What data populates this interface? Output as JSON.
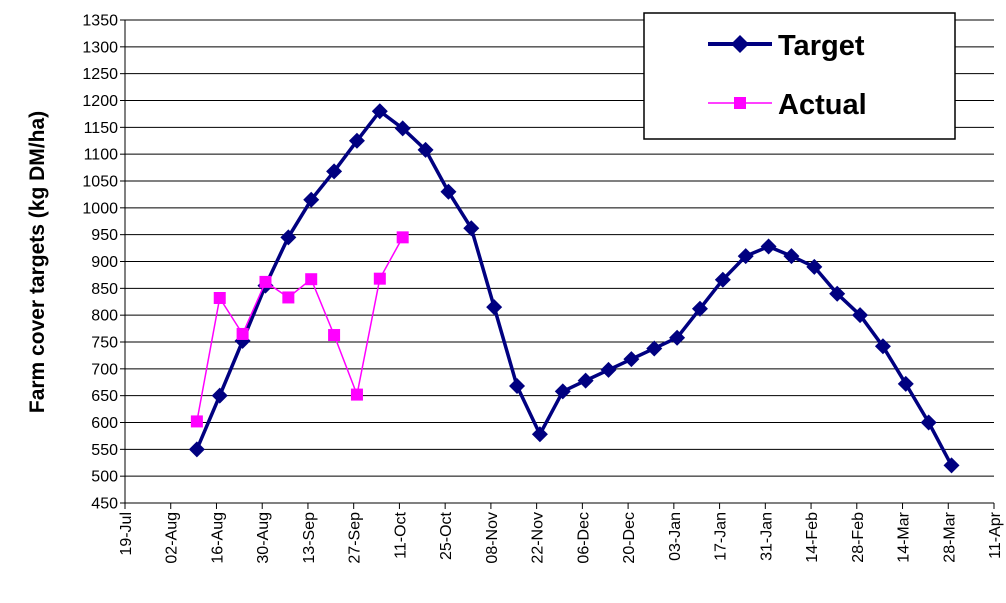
{
  "chart_data": {
    "type": "line",
    "title": "",
    "xlabel": "",
    "ylabel": "Farm cover targets (kg DM/ha)",
    "xlim": [
      "19-Jul",
      "11-Apr"
    ],
    "ylim": [
      450,
      1350
    ],
    "y_ticks": [
      450,
      500,
      550,
      600,
      650,
      700,
      750,
      800,
      850,
      900,
      950,
      1000,
      1050,
      1100,
      1150,
      1200,
      1250,
      1300,
      1350
    ],
    "x_tick_labels": [
      "19-Jul",
      "02-Aug",
      "16-Aug",
      "30-Aug",
      "13-Sep",
      "27-Sep",
      "11-Oct",
      "25-Oct",
      "08-Nov",
      "22-Nov",
      "06-Dec",
      "20-Dec",
      "03-Jan",
      "17-Jan",
      "31-Jan",
      "14-Feb",
      "28-Feb",
      "14-Mar",
      "28-Mar",
      "11-Apr"
    ],
    "grid": "horizontal",
    "legend_position": "top-right",
    "series": [
      {
        "name": "Target",
        "color": "#000080",
        "marker": "diamond",
        "points": [
          {
            "x": "10-Aug",
            "y": 550
          },
          {
            "x": "17-Aug",
            "y": 650
          },
          {
            "x": "24-Aug",
            "y": 752
          },
          {
            "x": "31-Aug",
            "y": 855
          },
          {
            "x": "07-Sep",
            "y": 945
          },
          {
            "x": "14-Sep",
            "y": 1015
          },
          {
            "x": "21-Sep",
            "y": 1068
          },
          {
            "x": "28-Sep",
            "y": 1125
          },
          {
            "x": "05-Oct",
            "y": 1180
          },
          {
            "x": "12-Oct",
            "y": 1148
          },
          {
            "x": "19-Oct",
            "y": 1108
          },
          {
            "x": "26-Oct",
            "y": 1030
          },
          {
            "x": "02-Nov",
            "y": 962
          },
          {
            "x": "09-Nov",
            "y": 815
          },
          {
            "x": "16-Nov",
            "y": 668
          },
          {
            "x": "23-Nov",
            "y": 578
          },
          {
            "x": "30-Nov",
            "y": 658
          },
          {
            "x": "07-Dec",
            "y": 678
          },
          {
            "x": "14-Dec",
            "y": 698
          },
          {
            "x": "21-Dec",
            "y": 718
          },
          {
            "x": "28-Dec",
            "y": 738
          },
          {
            "x": "04-Jan",
            "y": 758
          },
          {
            "x": "11-Jan",
            "y": 812
          },
          {
            "x": "18-Jan",
            "y": 866
          },
          {
            "x": "25-Jan",
            "y": 910
          },
          {
            "x": "01-Feb",
            "y": 928
          },
          {
            "x": "08-Feb",
            "y": 910
          },
          {
            "x": "15-Feb",
            "y": 890
          },
          {
            "x": "22-Feb",
            "y": 840
          },
          {
            "x": "01-Mar",
            "y": 800
          },
          {
            "x": "08-Mar",
            "y": 742
          },
          {
            "x": "15-Mar",
            "y": 672
          },
          {
            "x": "22-Mar",
            "y": 600
          },
          {
            "x": "29-Mar",
            "y": 520
          }
        ]
      },
      {
        "name": "Actual",
        "color": "#FF00FF",
        "marker": "square",
        "points": [
          {
            "x": "10-Aug",
            "y": 602
          },
          {
            "x": "17-Aug",
            "y": 832
          },
          {
            "x": "24-Aug",
            "y": 765
          },
          {
            "x": "31-Aug",
            "y": 862
          },
          {
            "x": "07-Sep",
            "y": 833
          },
          {
            "x": "14-Sep",
            "y": 867
          },
          {
            "x": "21-Sep",
            "y": 763
          },
          {
            "x": "28-Sep",
            "y": 652
          },
          {
            "x": "05-Oct",
            "y": 868
          },
          {
            "x": "12-Oct",
            "y": 945
          }
        ]
      }
    ]
  }
}
